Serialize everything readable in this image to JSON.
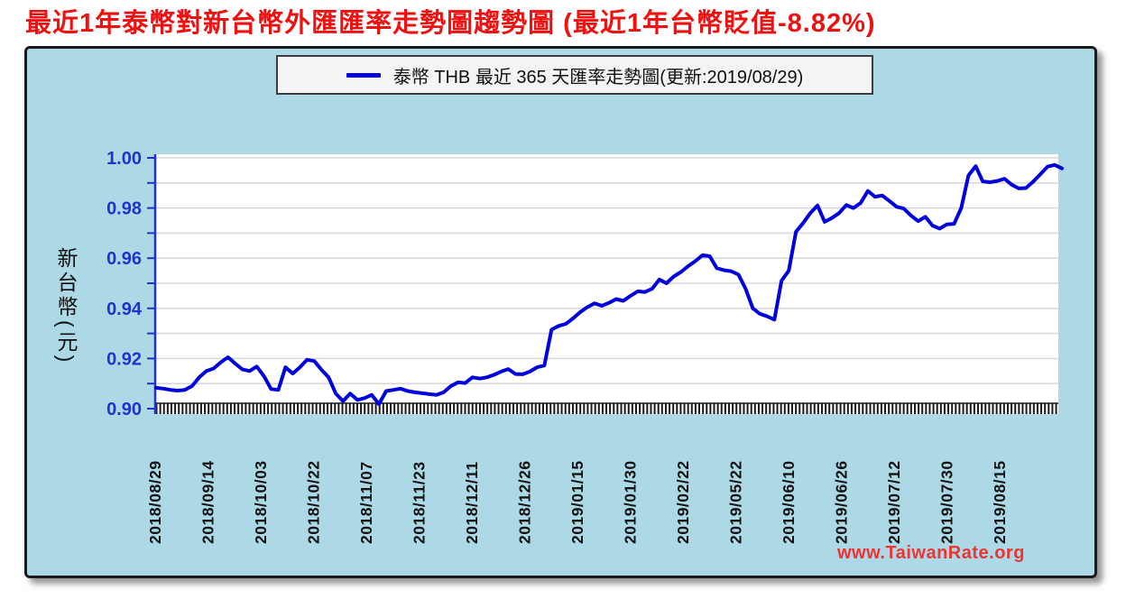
{
  "title": {
    "text": "最近1年泰幣對新台幣外匯匯率走勢圖趨勢圖 (最近1年台幣貶值-8.82%)"
  },
  "legend": {
    "label": "泰幣 THB 最近 365 天匯率走勢圖(更新:2019/08/29)"
  },
  "y_axis": {
    "unit_label": "新台幣(元)"
  },
  "watermark": {
    "text": "www.TaiwanRate.org"
  },
  "colors": {
    "line": "#0000dd",
    "axis_blue": "#2233cc",
    "y_label_blue": "#2233cc",
    "grid": "#d9d9d9",
    "x_label_black": "#141414",
    "comb_black": "#1a1a1a",
    "widget_bg": "#ADD8E6",
    "title_red": "#ee1111",
    "watermark_red": "#ee3333"
  },
  "chart_data": {
    "type": "line",
    "title": "最近1年泰幣對新台幣外匯匯率走勢圖趨勢圖 (最近1年台幣貶值-8.82%)",
    "subtitle_change_pct": "-8.82%",
    "update_date": "2019/08/29",
    "ylabel": "新台幣(元)",
    "ylim": [
      0.9,
      1.0
    ],
    "y_grid_step": 0.01,
    "y_tick_labels": [
      "1.00",
      "0.98",
      "0.96",
      "0.94",
      "0.92",
      "0.90"
    ],
    "y_tick_values": [
      1.0,
      0.98,
      0.96,
      0.94,
      0.92,
      0.9
    ],
    "x_tick_labels": [
      "2018/08/29",
      "2018/09/14",
      "2018/10/03",
      "2018/10/22",
      "2018/11/07",
      "2018/11/23",
      "2018/12/11",
      "2018/12/26",
      "2019/01/15",
      "2019/01/30",
      "2019/02/22",
      "2019/05/22",
      "2019/06/10",
      "2019/06/26",
      "2019/07/12",
      "2019/07/30",
      "2019/08/15"
    ],
    "grid": true,
    "legend_position": "top",
    "series": [
      {
        "name": "泰幣 THB 最近 365 天匯率走勢圖(更新:2019/08/29)",
        "color": "#0000dd",
        "values": [
          0.9083,
          0.908,
          0.9075,
          0.9072,
          0.9075,
          0.909,
          0.9125,
          0.915,
          0.916,
          0.9185,
          0.9205,
          0.918,
          0.9157,
          0.915,
          0.9168,
          0.913,
          0.9078,
          0.9075,
          0.9165,
          0.914,
          0.9165,
          0.9195,
          0.919,
          0.9155,
          0.9125,
          0.906,
          0.903,
          0.906,
          0.9035,
          0.9042,
          0.9055,
          0.9018,
          0.907,
          0.9075,
          0.908,
          0.907,
          0.9065,
          0.9062,
          0.9058,
          0.9055,
          0.9065,
          0.909,
          0.9105,
          0.9102,
          0.9125,
          0.912,
          0.9125,
          0.9135,
          0.9148,
          0.9158,
          0.9138,
          0.9137,
          0.9148,
          0.9165,
          0.9172,
          0.9315,
          0.933,
          0.9338,
          0.936,
          0.9385,
          0.9405,
          0.942,
          0.941,
          0.9422,
          0.9437,
          0.943,
          0.945,
          0.9468,
          0.9465,
          0.9478,
          0.9515,
          0.95,
          0.9527,
          0.9545,
          0.9568,
          0.9588,
          0.9612,
          0.9608,
          0.956,
          0.9552,
          0.9548,
          0.9535,
          0.9478,
          0.94,
          0.9378,
          0.9368,
          0.9355,
          0.951,
          0.955,
          0.9705,
          0.974,
          0.978,
          0.981,
          0.9745,
          0.976,
          0.978,
          0.9812,
          0.98,
          0.982,
          0.9868,
          0.9845,
          0.985,
          0.9828,
          0.9805,
          0.9798,
          0.977,
          0.9748,
          0.9765,
          0.973,
          0.9718,
          0.9735,
          0.9737,
          0.98,
          0.993,
          0.9967,
          0.9906,
          0.9903,
          0.9908,
          0.9917,
          0.9893,
          0.9878,
          0.988,
          0.9905,
          0.9935,
          0.9965,
          0.9972,
          0.9958
        ]
      }
    ]
  }
}
